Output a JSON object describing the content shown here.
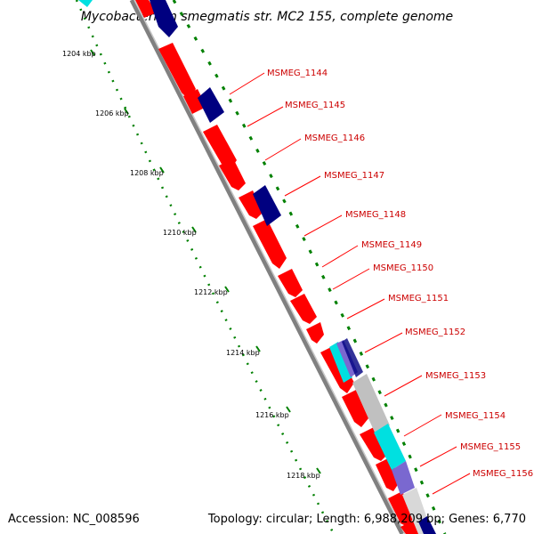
{
  "title": "Mycobacterium smegmatis str. MC2 155, complete genome",
  "accession": "Accession: NC_008596",
  "summary": "Topology: circular; Length: 6,988,209 bp; Genes: 6,770",
  "colors": {
    "cds": "#ff0000",
    "other_strand": "#000080",
    "cyan_feature": "#00e0e0",
    "purple_feature": "#7a68d0",
    "grey_feature": "#c0c0c0",
    "label": "#cc0000",
    "dots": "#008000",
    "backbone": "#808080"
  },
  "ruler": [
    {
      "text": "1204 kbp"
    },
    {
      "text": "1206 kbp"
    },
    {
      "text": "1208 kbp"
    },
    {
      "text": "1210 kbp"
    },
    {
      "text": "1212 kbp"
    },
    {
      "text": "1214 kbp"
    },
    {
      "text": "1216 kbp"
    },
    {
      "text": "1218 kbp"
    }
  ],
  "genes": [
    {
      "label": "MSMEG_1144"
    },
    {
      "label": "MSMEG_1145"
    },
    {
      "label": "MSMEG_1146"
    },
    {
      "label": "MSMEG_1147"
    },
    {
      "label": "MSMEG_1148"
    },
    {
      "label": "MSMEG_1149"
    },
    {
      "label": "MSMEG_1150"
    },
    {
      "label": "MSMEG_1151"
    },
    {
      "label": "MSMEG_1152"
    },
    {
      "label": "MSMEG_1153"
    },
    {
      "label": "MSMEG_1154"
    },
    {
      "label": "MSMEG_1155"
    },
    {
      "label": "MSMEG_1156"
    }
  ]
}
